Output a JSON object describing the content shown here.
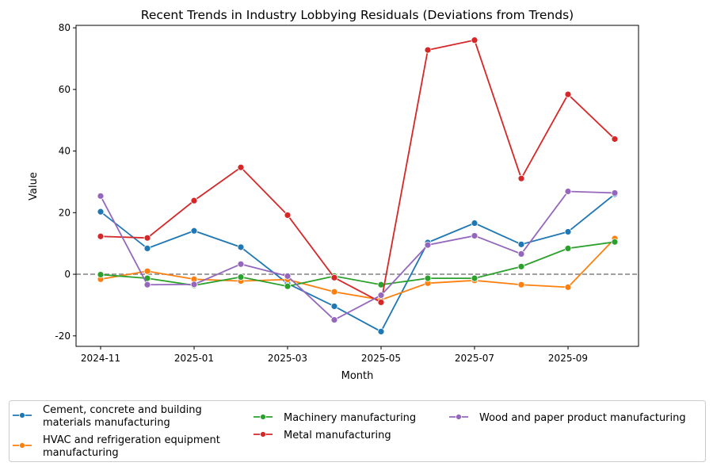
{
  "chart_data": {
    "type": "line",
    "title": "Recent Trends in Industry Lobbying Residuals (Deviations from Trends)",
    "xlabel": "Month",
    "ylabel": "Value",
    "ylim": [
      -23.4,
      80.8
    ],
    "yticks": [
      -20,
      0,
      20,
      40,
      60,
      80
    ],
    "xtick_labels": [
      "2024-11",
      "2025-01",
      "2025-03",
      "2025-05",
      "2025-07",
      "2025-09"
    ],
    "x": [
      "2024-11",
      "2024-12",
      "2025-01",
      "2025-02",
      "2025-03",
      "2025-04",
      "2025-05",
      "2025-06",
      "2025-07",
      "2025-08",
      "2025-09",
      "2025-10"
    ],
    "reference_line": {
      "y": 0,
      "style": "dashed",
      "color": "#808080"
    },
    "grid": false,
    "legend_placement": "bottom",
    "series": [
      {
        "name": "Cement, concrete and building materials manufacturing",
        "color": "#1f77b4",
        "values": [
          20.3,
          8.4,
          14.1,
          8.8,
          -3.0,
          -10.4,
          -18.6,
          10.3,
          16.6,
          9.7,
          13.8,
          26.0
        ]
      },
      {
        "name": "HVAC and refrigeration equipment manufacturing",
        "color": "#ff7f0e",
        "values": [
          -1.6,
          1.0,
          -1.6,
          -2.2,
          -1.7,
          -5.7,
          -8.3,
          -2.9,
          -2.0,
          -3.4,
          -4.2,
          11.6
        ]
      },
      {
        "name": "Machinery manufacturing",
        "color": "#2ca02c",
        "values": [
          -0.1,
          -1.3,
          -3.6,
          -0.9,
          -3.9,
          -0.6,
          -3.4,
          -1.3,
          -1.3,
          2.5,
          8.4,
          10.5
        ]
      },
      {
        "name": "Metal manufacturing",
        "color": "#d62728",
        "values": [
          12.3,
          11.8,
          23.9,
          34.7,
          19.2,
          -1.1,
          -9.1,
          72.8,
          76.0,
          31.1,
          58.4,
          43.9
        ]
      },
      {
        "name": "Wood and paper product manufacturing",
        "color": "#9467bd",
        "values": [
          25.4,
          -3.4,
          -3.3,
          3.3,
          -0.6,
          -14.8,
          -6.8,
          9.5,
          12.5,
          6.6,
          26.9,
          26.4
        ]
      }
    ],
    "legend_lines": [
      [
        "Cement, concrete and building",
        "materials manufacturing"
      ],
      [
        "HVAC and refrigeration equipment",
        "manufacturing"
      ],
      [
        "Machinery manufacturing"
      ],
      [
        "Metal manufacturing"
      ],
      [
        "Wood and paper product manufacturing"
      ]
    ]
  }
}
